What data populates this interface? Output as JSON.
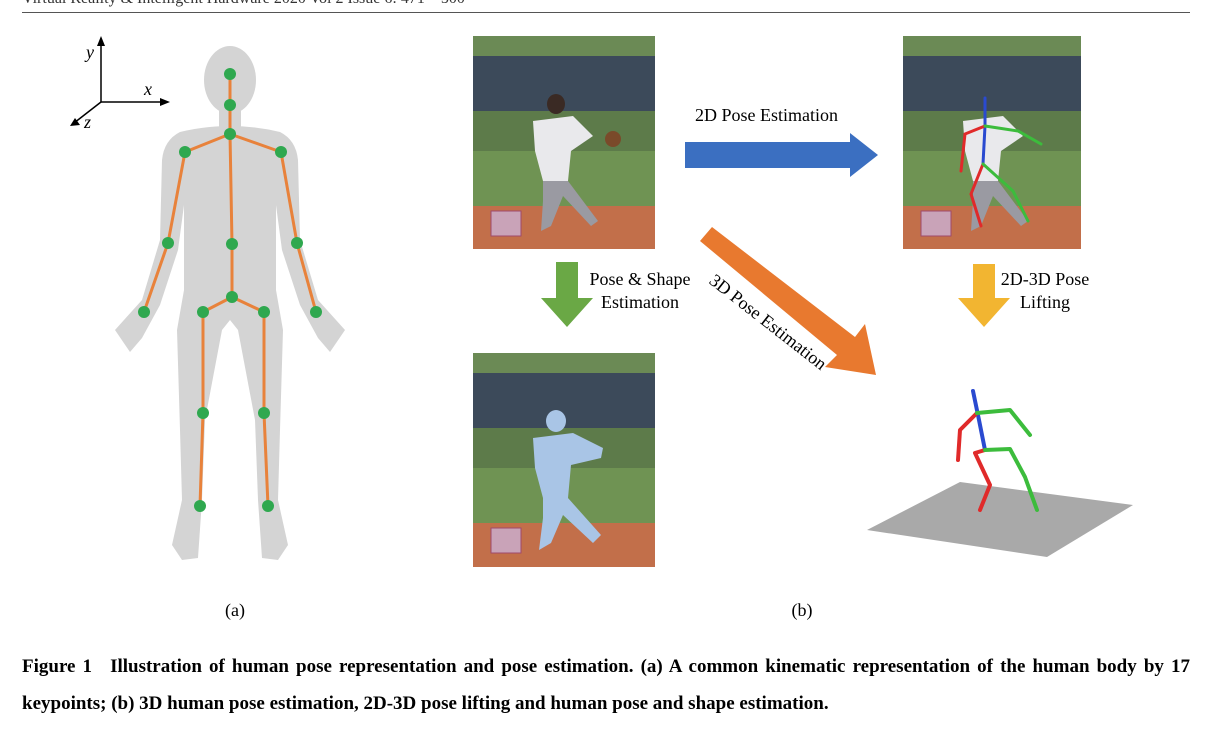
{
  "header": {
    "running_head": "Virtual Reality & Intelligent Hardware  2020 Vol 2 Issue 6: 471—500"
  },
  "panel_a": {
    "axis_x": "x",
    "axis_y": "y",
    "axis_z": "z",
    "label": "(a)"
  },
  "panel_b": {
    "label": "(b)",
    "arrow_2d": "2D Pose Estimation",
    "arrow_3d": "3D Pose Estimation",
    "arrow_shape_line1": "Pose & Shape",
    "arrow_shape_line2": "Estimation",
    "arrow_lift_line1": "2D-3D Pose",
    "arrow_lift_line2": "Lifting"
  },
  "colors": {
    "skeleton_orange": "#e8823b",
    "keypoint_green": "#2fa84f",
    "arrow_blue": "#3b6fc1",
    "arrow_orange": "#e8792f",
    "arrow_green": "#6aa845",
    "arrow_yellow": "#f2b531",
    "limb_red": "#e02a2a",
    "limb_green": "#3cbc3c",
    "limb_blue": "#2a4ad0"
  },
  "caption": {
    "figure_label": "Figure 1",
    "text": "Illustration of human pose representation and pose estimation. (a) A common kinematic representation of the human body by 17 keypoints; (b) 3D human pose estimation, 2D-3D pose lifting and human pose and shape estimation."
  }
}
